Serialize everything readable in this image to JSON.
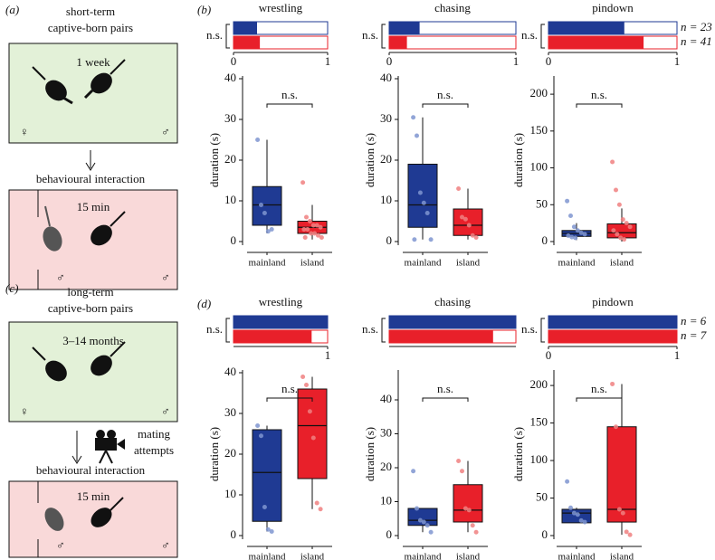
{
  "panel_a": {
    "label": "(a)",
    "heading": [
      "short-term",
      "captive-born pairs"
    ],
    "duration": "1 week",
    "female": "♀",
    "male": "♂",
    "interaction": "behavioural interaction",
    "interaction_duration": "15 min",
    "male_left": "♂",
    "male_right": "♂"
  },
  "panel_c": {
    "label": "(c)",
    "heading": [
      "long-term",
      "captive-born pairs"
    ],
    "duration": "3–14 months",
    "female": "♀",
    "male": "♂",
    "camera_label": [
      "mating",
      "attempts"
    ],
    "interaction": "behavioural interaction",
    "interaction_duration": "15 min",
    "male_left": "♂",
    "male_right": "♂"
  },
  "panel_b": {
    "label": "(b)"
  },
  "panel_d": {
    "label": "(d)"
  },
  "chart_data": [
    {
      "type": "box",
      "title": "wrestling",
      "categories": [
        "mainland",
        "island"
      ],
      "ylabel": "duration (s)",
      "annotation": "n.s.",
      "proportion_annotation": "n.s.",
      "proportions": [
        0.25,
        0.28
      ],
      "xlim": [
        0,
        1
      ],
      "xticks": [
        0,
        1
      ],
      "ylim": [
        0,
        40
      ],
      "yticks": [
        0,
        10,
        20,
        30,
        40
      ],
      "boxes": [
        {
          "color": "#1f3a93",
          "whisker_low": 2,
          "q1": 4,
          "median": 9,
          "q3": 13.5,
          "whisker_high": 25,
          "points": [
            25,
            9,
            7,
            2.5,
            3
          ]
        },
        {
          "color": "#e8202a",
          "whisker_low": 0.5,
          "q1": 2,
          "median": 3.5,
          "q3": 5,
          "whisker_high": 9,
          "points": [
            14.5,
            6,
            5,
            4,
            4,
            3.5,
            3,
            3,
            2,
            2,
            1.5,
            1,
            1
          ]
        }
      ]
    },
    {
      "type": "box",
      "title": "chasing",
      "categories": [
        "mainland",
        "island"
      ],
      "ylabel": "duration (s)",
      "annotation": "n.s.",
      "proportion_annotation": "n.s.",
      "proportions": [
        0.24,
        0.14
      ],
      "xlim": [
        0,
        1
      ],
      "xticks": [
        0,
        1
      ],
      "ylim": [
        0,
        40
      ],
      "yticks": [
        0,
        10,
        20,
        30,
        40
      ],
      "boxes": [
        {
          "color": "#1f3a93",
          "whisker_low": 0.5,
          "q1": 3.5,
          "median": 9,
          "q3": 19,
          "whisker_high": 30.5,
          "points": [
            30.5,
            26,
            12,
            9.5,
            7,
            0.5,
            0.5
          ]
        },
        {
          "color": "#e8202a",
          "whisker_low": 0.5,
          "q1": 1.5,
          "median": 4,
          "q3": 8,
          "whisker_high": 13,
          "points": [
            13,
            6,
            5.5,
            4,
            1.5,
            1
          ]
        }
      ]
    },
    {
      "type": "box",
      "title": "pindown",
      "categories": [
        "mainland",
        "island"
      ],
      "ylabel": "duration (s)",
      "annotation": "n.s.",
      "proportion_annotation": "n.s.",
      "proportions": [
        0.59,
        0.74
      ],
      "xlim": [
        0,
        1
      ],
      "xticks": [
        0,
        1
      ],
      "ylim": [
        0,
        221
      ],
      "yticks": [
        0,
        50,
        100,
        150,
        200
      ],
      "n_labels": [
        "n = 23",
        "n = 41"
      ],
      "boxes": [
        {
          "color": "#1f3a93",
          "whisker_low": 2,
          "q1": 7,
          "median": 11,
          "q3": 15,
          "whisker_high": 25,
          "points": [
            55,
            35,
            20,
            15,
            12,
            10,
            8,
            6,
            5
          ]
        },
        {
          "color": "#e8202a",
          "whisker_low": 0,
          "q1": 5,
          "median": 12,
          "q3": 24,
          "whisker_high": 45,
          "points": [
            108,
            70,
            50,
            30,
            25,
            20,
            15,
            10,
            5,
            3
          ]
        }
      ]
    },
    {
      "type": "box",
      "title": "wrestling",
      "categories": [
        "mainland",
        "island"
      ],
      "ylabel": "duration (s)",
      "annotation": "n.s.",
      "proportion_annotation": "n.s.",
      "proportions": [
        1,
        0.83
      ],
      "xlim": [
        0,
        1
      ],
      "xticks": [
        1
      ],
      "ylim": [
        0,
        40
      ],
      "yticks": [
        0,
        10,
        20,
        30,
        40
      ],
      "boxes": [
        {
          "color": "#1f3a93",
          "whisker_low": 1,
          "q1": 3.5,
          "median": 15.5,
          "q3": 26,
          "whisker_high": 27,
          "points": [
            27,
            24.5,
            7,
            1.5,
            1
          ]
        },
        {
          "color": "#e8202a",
          "whisker_low": 6.5,
          "q1": 14,
          "median": 27,
          "q3": 36,
          "whisker_high": 39,
          "points": [
            39,
            37,
            30.5,
            24,
            8,
            6.5
          ]
        }
      ]
    },
    {
      "type": "box",
      "title": "chasing",
      "categories": [
        "mainland",
        "island"
      ],
      "ylabel": "duration (s)",
      "annotation": "n.s.",
      "proportion_annotation": "n.s.",
      "proportions": [
        1,
        0.82
      ],
      "xlim": [
        0,
        1
      ],
      "xticks": [],
      "ylim": [
        0,
        48
      ],
      "yticks": [
        0,
        10,
        20,
        30,
        40
      ],
      "boxes": [
        {
          "color": "#1f3a93",
          "whisker_low": 1,
          "q1": 3,
          "median": 4.5,
          "q3": 8,
          "whisker_high": 8,
          "points": [
            19,
            8,
            4.5,
            4,
            3,
            1
          ]
        },
        {
          "color": "#e8202a",
          "whisker_low": 1,
          "q1": 4,
          "median": 7.5,
          "q3": 15,
          "whisker_high": 22,
          "points": [
            22,
            19,
            8,
            7.5,
            3,
            1
          ]
        }
      ]
    },
    {
      "type": "box",
      "title": "pindown",
      "categories": [
        "mainland",
        "island"
      ],
      "ylabel": "duration (s)",
      "annotation": "n.s.",
      "proportion_annotation": "n.s.",
      "proportions": [
        1,
        1
      ],
      "xlim": [
        0,
        1
      ],
      "xticks": [
        0,
        1
      ],
      "ylim": [
        0,
        217
      ],
      "yticks": [
        0,
        50,
        100,
        150,
        200
      ],
      "n_labels": [
        "n = 6",
        "n = 7"
      ],
      "boxes": [
        {
          "color": "#1f3a93",
          "whisker_low": 17,
          "q1": 17,
          "median": 30,
          "q3": 35,
          "whisker_high": 37,
          "points": [
            72,
            37,
            30,
            28,
            20,
            18
          ]
        },
        {
          "color": "#e8202a",
          "whisker_low": 1,
          "q1": 18,
          "median": 35,
          "q3": 145,
          "whisker_high": 202,
          "points": [
            202,
            145,
            35,
            30,
            5,
            1
          ]
        }
      ]
    }
  ]
}
